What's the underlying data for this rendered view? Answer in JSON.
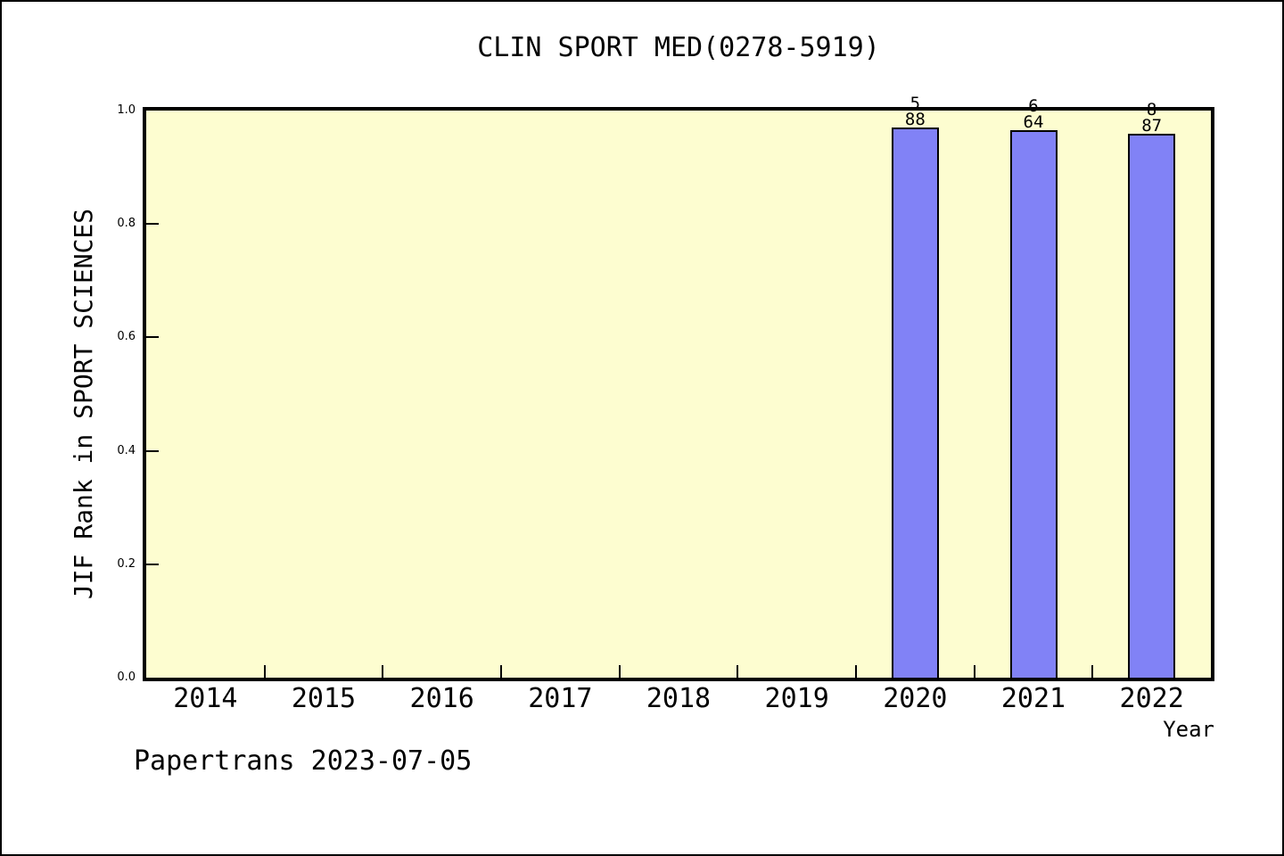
{
  "footer": "Papertrans 2023-07-05",
  "chart_data": {
    "type": "bar",
    "title": "CLIN SPORT MED(0278-5919)",
    "xlabel": "Year",
    "ylabel": "JIF Rank in SPORT SCIENCES",
    "categories": [
      "2014",
      "2015",
      "2016",
      "2017",
      "2018",
      "2019",
      "2020",
      "2021",
      "2022"
    ],
    "values": [
      null,
      null,
      null,
      null,
      null,
      null,
      0.97,
      0.966,
      0.959
    ],
    "bars": [
      {
        "category": "2020",
        "value": 0.97,
        "rank": "5",
        "total": "88"
      },
      {
        "category": "2021",
        "value": 0.966,
        "rank": "6",
        "total": "64"
      },
      {
        "category": "2022",
        "value": 0.959,
        "rank": "8",
        "total": "87"
      }
    ],
    "ylim": [
      0.0,
      1.0
    ],
    "yticks": [
      "0.0",
      "0.2",
      "0.4",
      "0.6",
      "0.8",
      "1.0"
    ],
    "grid": false,
    "legend": "none",
    "colors": {
      "plot_bg": "#FDFDD0",
      "bar_fill": "#8182F6",
      "bar_edge": "#000000",
      "spine": "#000000",
      "text": "#000000",
      "figure_bg": "#FFFFFF"
    }
  }
}
